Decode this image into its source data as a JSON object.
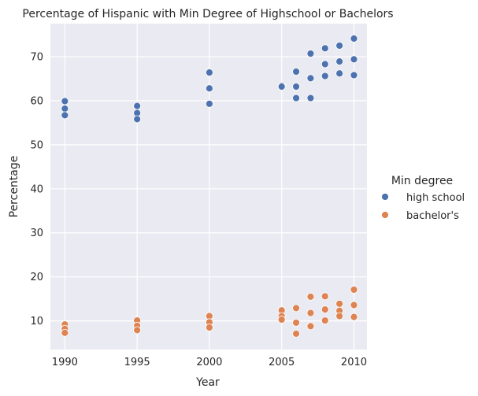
{
  "chart_data": {
    "type": "scatter",
    "title": "Percentage of Hispanic with Min Degree of Highschool or Bachelors",
    "xlabel": "Year",
    "ylabel": "Percentage",
    "xlim": [
      1989,
      2010.9
    ],
    "ylim": [
      3.5,
      77.5
    ],
    "x_ticks": [
      1990,
      1995,
      2000,
      2005,
      2010
    ],
    "y_ticks": [
      10,
      20,
      30,
      40,
      50,
      60,
      70
    ],
    "grid": true,
    "legend": {
      "title": "Min degree",
      "placement": "right"
    },
    "series": [
      {
        "name": "high school",
        "color": "#4c72b0",
        "points": [
          [
            1990,
            59.9
          ],
          [
            1990,
            58.2
          ],
          [
            1990,
            56.7
          ],
          [
            1995,
            58.8
          ],
          [
            1995,
            57.2
          ],
          [
            1995,
            55.8
          ],
          [
            2000,
            66.4
          ],
          [
            2000,
            62.8
          ],
          [
            2000,
            59.3
          ],
          [
            2005,
            63.4
          ],
          [
            2005,
            63.2
          ],
          [
            2006,
            66.6
          ],
          [
            2006,
            63.2
          ],
          [
            2006,
            60.6
          ],
          [
            2007,
            70.7
          ],
          [
            2007,
            65.1
          ],
          [
            2007,
            60.6
          ],
          [
            2008,
            71.9
          ],
          [
            2008,
            68.3
          ],
          [
            2008,
            65.6
          ],
          [
            2009,
            72.5
          ],
          [
            2009,
            68.9
          ],
          [
            2009,
            66.2
          ],
          [
            2010,
            74.1
          ],
          [
            2010,
            69.4
          ],
          [
            2010,
            65.8
          ]
        ]
      },
      {
        "name": "bachelor's",
        "color": "#dd8452",
        "points": [
          [
            1990,
            9.2
          ],
          [
            1990,
            8.2
          ],
          [
            1990,
            7.3
          ],
          [
            1995,
            10.1
          ],
          [
            1995,
            8.9
          ],
          [
            1995,
            7.9
          ],
          [
            2000,
            11.1
          ],
          [
            2000,
            9.7
          ],
          [
            2000,
            8.5
          ],
          [
            2005,
            12.4
          ],
          [
            2005,
            11.1
          ],
          [
            2005,
            10.3
          ],
          [
            2006,
            12.9
          ],
          [
            2006,
            9.6
          ],
          [
            2006,
            7.1
          ],
          [
            2007,
            15.5
          ],
          [
            2007,
            11.8
          ],
          [
            2007,
            8.8
          ],
          [
            2008,
            15.6
          ],
          [
            2008,
            12.6
          ],
          [
            2008,
            10.1
          ],
          [
            2009,
            13.9
          ],
          [
            2009,
            12.3
          ],
          [
            2009,
            11.1
          ],
          [
            2010,
            17.1
          ],
          [
            2010,
            13.6
          ],
          [
            2010,
            10.9
          ]
        ]
      }
    ],
    "colors": {
      "plot_background": "#eaeaf2",
      "grid": "#ffffff",
      "text": "#262626"
    }
  }
}
